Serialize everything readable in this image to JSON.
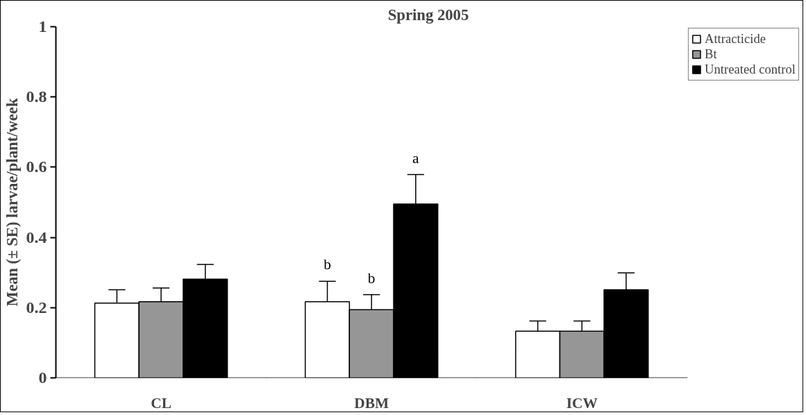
{
  "chart_data": {
    "type": "bar",
    "title": "Spring 2005",
    "ylabel": "Mean (± SE) larvae/plant/week",
    "categories": [
      "CL",
      "DBM",
      "ICW"
    ],
    "series": [
      {
        "name": "Attracticide",
        "color": "#ffffff",
        "values": [
          0.213,
          0.217,
          0.133
        ],
        "errors": [
          [
            0.213,
            0.251
          ],
          [
            0.217,
            0.275
          ],
          [
            0.133,
            0.162
          ]
        ],
        "value_labels": [
          null,
          "b",
          null
        ]
      },
      {
        "name": "Bt",
        "color": "#969696",
        "values": [
          0.217,
          0.194,
          0.133
        ],
        "errors": [
          [
            0.217,
            0.256
          ],
          [
            0.194,
            0.237
          ],
          [
            0.133,
            0.162
          ]
        ],
        "value_labels": [
          null,
          "b",
          null
        ]
      },
      {
        "name": "Untreated control",
        "color": "#000000",
        "values": [
          0.281,
          0.495,
          0.251
        ],
        "errors": [
          [
            0.281,
            0.323
          ],
          [
            0.495,
            0.579
          ],
          [
            0.251,
            0.299
          ]
        ],
        "value_labels": [
          null,
          "a",
          null
        ]
      }
    ],
    "ylim": [
      0,
      1
    ],
    "yticks": [
      0,
      0.2,
      0.4,
      0.6,
      0.8,
      1
    ],
    "grid": false,
    "legend": "top right"
  }
}
